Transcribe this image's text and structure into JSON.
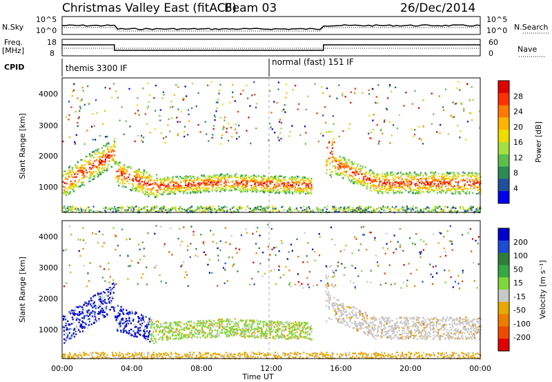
{
  "header": {
    "title": "Christmas Valley East (fitACF)",
    "beam": "Beam 03",
    "date": "26/Dec/2014"
  },
  "left_labels": {
    "nsky": "N.Sky",
    "freq": "Freq.",
    "mhz": "[MHz]",
    "cpid": "CPID"
  },
  "right_labels": {
    "nsearch": "N.Search",
    "nave": "Nave"
  },
  "cpid_modes": {
    "mode1": "themis 3300 IF",
    "mode2": "normal (fast) 151 IF"
  },
  "power_colorbar": {
    "label": "Power [dB]",
    "ticks": [
      "28",
      "24",
      "20",
      "16",
      "12",
      "8",
      "4"
    ],
    "colors": [
      "#e00000",
      "#ff3000",
      "#ff7a00",
      "#ffb400",
      "#f0dc00",
      "#a6e040",
      "#5cbf4a",
      "#2c8a55",
      "#20509c",
      "#0000ee"
    ]
  },
  "velocity_colorbar": {
    "label": "Velocity [m s⁻¹]",
    "ticks": [
      "200",
      "100",
      "50",
      "15",
      "-15",
      "-50",
      "-100",
      "-200"
    ],
    "colors": [
      "#0000cc",
      "#1c4bd6",
      "#2e7d3a",
      "#38a845",
      "#7fd83a",
      "#c8c8c8",
      "#e8a800",
      "#f07d00",
      "#f04a00",
      "#e00000"
    ]
  },
  "chart_data": [
    {
      "type": "line",
      "name": "noise-panel",
      "left_ticks": [
        "10^5",
        "10^0"
      ],
      "right_ticks": [
        "10^5",
        "10^0"
      ],
      "x": [
        "00:00",
        "04:00",
        "08:00",
        "12:00",
        "16:00",
        "20:00",
        "00:00"
      ]
    },
    {
      "type": "line",
      "name": "freq-panel",
      "left_ticks": [
        "18",
        "8"
      ],
      "right_ticks": [
        "60",
        "0"
      ],
      "freq_segments": [
        {
          "start": "00:00",
          "end": "03:00",
          "value": 14
        },
        {
          "start": "03:00",
          "end": "15:00",
          "value": 10
        },
        {
          "start": "15:00",
          "end": "24:00",
          "value": 14
        }
      ]
    },
    {
      "type": "heatmap",
      "name": "power-panel",
      "ylabel": "Slant Range [km]",
      "yticks": [
        "4000",
        "3000",
        "2000",
        "1000"
      ],
      "ylim": [
        180,
        4500
      ],
      "xlim": [
        "00:00",
        "24:00"
      ]
    },
    {
      "type": "heatmap",
      "name": "velocity-panel",
      "ylabel": "Slant Range [km]",
      "yticks": [
        "4000",
        "3000",
        "2000",
        "1000"
      ],
      "ylim": [
        180,
        4500
      ],
      "xticks": [
        "00:00",
        "04:00",
        "08:00",
        "12:00",
        "16:00",
        "20:00",
        "00:00"
      ],
      "xlabel": "Time UT",
      "xlim": [
        "00:00",
        "24:00"
      ]
    }
  ]
}
